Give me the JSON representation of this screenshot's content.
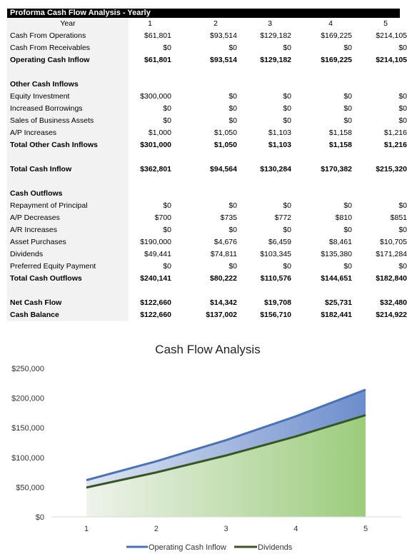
{
  "table": {
    "title": "Proforma Cash Flow Analysis - Yearly",
    "header_label": "Year",
    "years": [
      "1",
      "2",
      "3",
      "4",
      "5"
    ],
    "rows": [
      {
        "label": "Cash From Operations",
        "bold": false,
        "values": [
          "$61,801",
          "$93,514",
          "$129,182",
          "$169,225",
          "$214,105"
        ]
      },
      {
        "label": "Cash From Receivables",
        "bold": false,
        "values": [
          "$0",
          "$0",
          "$0",
          "$0",
          "$0"
        ]
      },
      {
        "label": "Operating Cash Inflow",
        "bold": true,
        "values": [
          "$61,801",
          "$93,514",
          "$129,182",
          "$169,225",
          "$214,105"
        ]
      },
      {
        "label": "",
        "bold": false,
        "values": []
      },
      {
        "label": "Other Cash Inflows",
        "bold": true,
        "values": []
      },
      {
        "label": "Equity Investment",
        "bold": false,
        "values": [
          "$300,000",
          "$0",
          "$0",
          "$0",
          "$0"
        ]
      },
      {
        "label": "Increased Borrowings",
        "bold": false,
        "values": [
          "$0",
          "$0",
          "$0",
          "$0",
          "$0"
        ]
      },
      {
        "label": "Sales of Business Assets",
        "bold": false,
        "values": [
          "$0",
          "$0",
          "$0",
          "$0",
          "$0"
        ]
      },
      {
        "label": "A/P Increases",
        "bold": false,
        "values": [
          "$1,000",
          "$1,050",
          "$1,103",
          "$1,158",
          "$1,216"
        ]
      },
      {
        "label": "Total Other Cash Inflows",
        "bold": true,
        "values": [
          "$301,000",
          "$1,050",
          "$1,103",
          "$1,158",
          "$1,216"
        ]
      },
      {
        "label": "",
        "bold": false,
        "values": []
      },
      {
        "label": "Total Cash Inflow",
        "bold": true,
        "values": [
          "$362,801",
          "$94,564",
          "$130,284",
          "$170,382",
          "$215,320"
        ]
      },
      {
        "label": "",
        "bold": false,
        "values": []
      },
      {
        "label": "Cash Outflows",
        "bold": true,
        "values": []
      },
      {
        "label": "Repayment of Principal",
        "bold": false,
        "values": [
          "$0",
          "$0",
          "$0",
          "$0",
          "$0"
        ]
      },
      {
        "label": "A/P Decreases",
        "bold": false,
        "values": [
          "$700",
          "$735",
          "$772",
          "$810",
          "$851"
        ]
      },
      {
        "label": "A/R Increases",
        "bold": false,
        "values": [
          "$0",
          "$0",
          "$0",
          "$0",
          "$0"
        ]
      },
      {
        "label": "Asset Purchases",
        "bold": false,
        "values": [
          "$190,000",
          "$4,676",
          "$6,459",
          "$8,461",
          "$10,705"
        ]
      },
      {
        "label": "Dividends",
        "bold": false,
        "values": [
          "$49,441",
          "$74,811",
          "$103,345",
          "$135,380",
          "$171,284"
        ]
      },
      {
        "label": "Preferred Equity Payment",
        "bold": false,
        "values": [
          "$0",
          "$0",
          "$0",
          "$0",
          "$0"
        ]
      },
      {
        "label": "Total Cash Outflows",
        "bold": true,
        "values": [
          "$240,141",
          "$80,222",
          "$110,576",
          "$144,651",
          "$182,840"
        ]
      },
      {
        "label": "",
        "bold": false,
        "values": []
      },
      {
        "label": "Net Cash Flow",
        "bold": true,
        "values": [
          "$122,660",
          "$14,342",
          "$19,708",
          "$25,731",
          "$32,480"
        ]
      },
      {
        "label": "Cash Balance",
        "bold": true,
        "values": [
          "$122,660",
          "$137,002",
          "$156,710",
          "$182,441",
          "$214,922"
        ]
      }
    ]
  },
  "chart_data": {
    "type": "area",
    "title": "Cash Flow Analysis",
    "categories": [
      "1",
      "2",
      "3",
      "4",
      "5"
    ],
    "ylim": [
      0,
      250000
    ],
    "yticks": [
      0,
      50000,
      100000,
      150000,
      200000,
      250000
    ],
    "ytick_labels": [
      "$0",
      "$50,000",
      "$100,000",
      "$150,000",
      "$200,000",
      "$250,000"
    ],
    "grid": false,
    "legend_position": "bottom",
    "series": [
      {
        "name": "Operating Cash Inflow",
        "values": [
          61801,
          93514,
          129182,
          169225,
          214105
        ],
        "color": "#4a72b8"
      },
      {
        "name": "Dividends",
        "values": [
          49441,
          74811,
          103345,
          135380,
          171284
        ],
        "color": "#375623"
      }
    ]
  }
}
